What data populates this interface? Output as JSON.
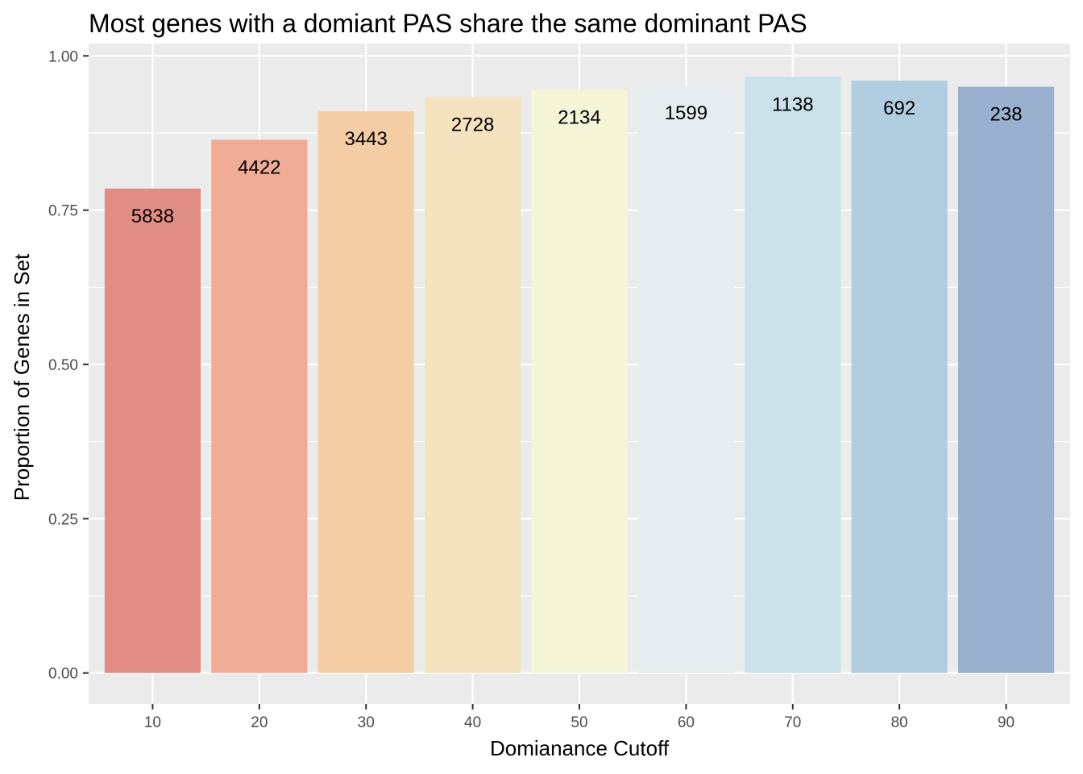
{
  "chart_data": {
    "type": "bar",
    "title": "Most genes with a domiant PAS share the same dominant PAS",
    "xlabel": "Domianance Cutoff",
    "ylabel": "Proportion of Genes in Set",
    "categories": [
      "10",
      "20",
      "30",
      "40",
      "50",
      "60",
      "70",
      "80",
      "90"
    ],
    "values": [
      0.785,
      0.864,
      0.91,
      0.933,
      0.945,
      0.952,
      0.966,
      0.96,
      0.95
    ],
    "labels": [
      "5838",
      "4422",
      "3443",
      "2728",
      "2134",
      "1599",
      "1138",
      "692",
      "238"
    ],
    "colors": [
      "#e28c86",
      "#efab95",
      "#f5cda5",
      "#f4e3be",
      "#f5f4d6",
      "#e5edf0",
      "#cae1e9",
      "#b1cde0",
      "#99b0cf"
    ],
    "ylim": [
      -0.05,
      1.02
    ],
    "yticks": [
      0,
      0.25,
      0.5,
      0.75,
      1
    ],
    "ytick_labels": [
      "0.00",
      "0.25",
      "0.50",
      "0.75",
      "1.00"
    ],
    "grid": true,
    "legend": "none",
    "panel_background": "#ebebeb",
    "grid_color": "#ffffff"
  }
}
